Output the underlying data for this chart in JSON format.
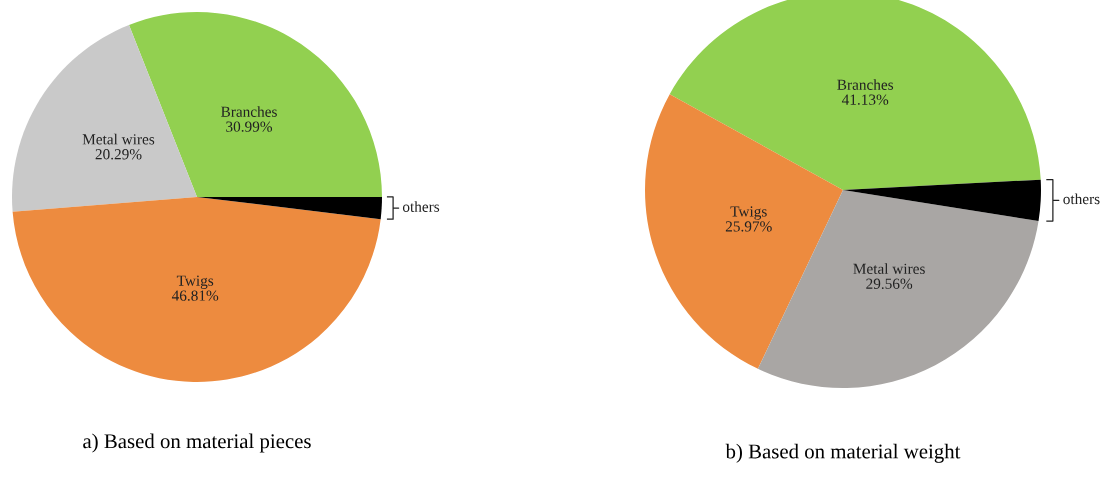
{
  "chart_data": [
    {
      "type": "pie",
      "title": "a) Based on material pieces",
      "categories": [
        "Branches",
        "Metal wires",
        "Twigs",
        "others"
      ],
      "values": [
        30.99,
        20.29,
        46.81,
        1.91
      ],
      "colors": [
        "#92d050",
        "#c9c9c9",
        "#ed8b3f",
        "#000000"
      ],
      "value_labels": [
        "30.99%",
        "20.29%",
        "46.81%",
        null
      ]
    },
    {
      "type": "pie",
      "title": "b) Based on material weight",
      "categories": [
        "Branches",
        "Twigs",
        "Metal wires",
        "others"
      ],
      "values": [
        41.13,
        25.97,
        29.56,
        3.34
      ],
      "colors": [
        "#92d050",
        "#ed8b3f",
        "#a9a6a4",
        "#000000"
      ],
      "value_labels": [
        "41.13%",
        "25.97%",
        "29.56%",
        null
      ]
    }
  ]
}
